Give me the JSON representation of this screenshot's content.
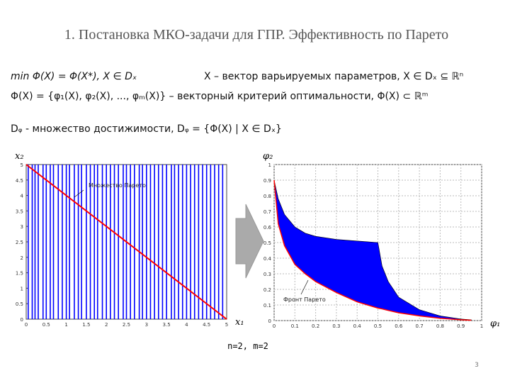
{
  "slide": {
    "title": "1. Постановка МКО-задачи для ГПР. Эффективность по Парето",
    "formula_1a": "min Φ(X) = Φ(X*),  X ∈ Dₓ",
    "formula_1b": "X – вектор варьируемых параметров,  X ∈ Dₓ ⊆ ℝⁿ",
    "formula_2": "Φ(X) = {φ₁(X), φ₂(X), ..., φₘ(X)} – векторный критерий оптимальности, Φ(X) ⊂ ℝᵐ",
    "formula_3": "Dᵩ - множество достижимости, Dᵩ = {Φ(X) | X ∈ Dₓ}",
    "caption": "n=2, m=2",
    "page_number": "3"
  },
  "chart_data": [
    {
      "type": "line",
      "x_label": "x₁",
      "y_label": "x₂",
      "annotation": "Множество Парето",
      "xlim": [
        0,
        5
      ],
      "ylim": [
        0,
        5
      ],
      "xticks": [
        0,
        0.5,
        1,
        1.5,
        2,
        2.5,
        3,
        3.5,
        4,
        4.5,
        5
      ],
      "yticks": [
        0,
        0.5,
        1,
        1.5,
        2,
        2.5,
        3,
        3.5,
        4,
        4.5,
        5
      ],
      "vlines": {
        "color": "#0000ff",
        "x": [
          0.05,
          0.15,
          0.22,
          0.3,
          0.42,
          0.5,
          0.6,
          0.68,
          0.8,
          0.9,
          1.0,
          1.08,
          1.2,
          1.3,
          1.38,
          1.5,
          1.6,
          1.7,
          1.78,
          1.9,
          2.0,
          2.1,
          2.2,
          2.3,
          2.42,
          2.5,
          2.6,
          2.7,
          2.82,
          2.9,
          3.0,
          3.1,
          3.2,
          3.3,
          3.4,
          3.5,
          3.62,
          3.7,
          3.8,
          3.9,
          4.0,
          4.1,
          4.2,
          4.3,
          4.4,
          4.5,
          4.6,
          4.7,
          4.8,
          4.9
        ]
      },
      "series": [
        {
          "color": "#ff0000",
          "x": [
            0,
            5
          ],
          "values": [
            5,
            0
          ]
        }
      ]
    },
    {
      "type": "area",
      "x_label": "φ₁",
      "y_label": "φ₂",
      "annotation": "Фронт Парето",
      "xlim": [
        0,
        1
      ],
      "ylim": [
        0,
        1
      ],
      "grid": true,
      "xticks": [
        0,
        0.1,
        0.2,
        0.3,
        0.4,
        0.5,
        0.6,
        0.7,
        0.8,
        0.9,
        1
      ],
      "yticks": [
        0,
        0.1,
        0.2,
        0.3,
        0.4,
        0.5,
        0.6,
        0.7,
        0.8,
        0.9,
        1
      ],
      "x": [
        0,
        0.02,
        0.05,
        0.1,
        0.15,
        0.2,
        0.3,
        0.4,
        0.5,
        0.52,
        0.55,
        0.6,
        0.7,
        0.8,
        0.9,
        0.95
      ],
      "fill": "#0000ff",
      "front_color": "#ff0000",
      "upper": {
        "values": [
          0.9,
          0.78,
          0.68,
          0.6,
          0.56,
          0.54,
          0.52,
          0.51,
          0.5,
          0.35,
          0.25,
          0.15,
          0.07,
          0.03,
          0.01,
          0.005
        ]
      },
      "lower": {
        "values": [
          0.9,
          0.62,
          0.48,
          0.36,
          0.3,
          0.25,
          0.18,
          0.12,
          0.08,
          0.075,
          0.065,
          0.05,
          0.03,
          0.015,
          0.005,
          0.002
        ]
      }
    }
  ]
}
